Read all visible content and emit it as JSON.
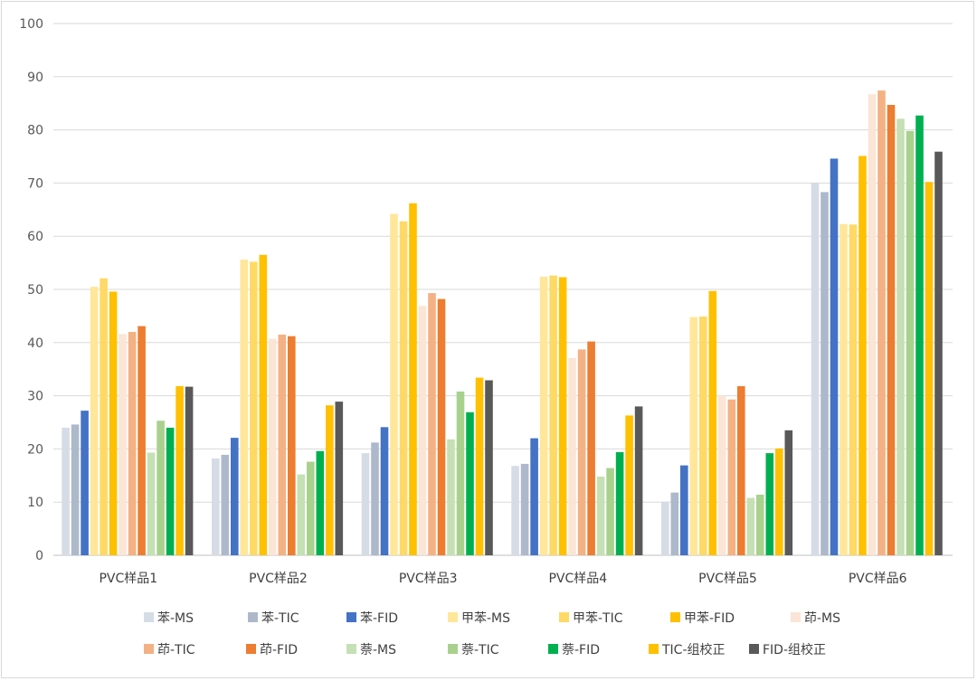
{
  "chart_data": {
    "type": "bar",
    "categories": [
      "PVC样品1",
      "PVC样品2",
      "PVC样品3",
      "PVC样品4",
      "PVC样品5",
      "PVC样品6"
    ],
    "ylim": [
      0,
      100
    ],
    "yticks": [
      0,
      10,
      20,
      30,
      40,
      50,
      60,
      70,
      80,
      90,
      100
    ],
    "grid": true,
    "legend_position": "bottom",
    "series": [
      {
        "name": "苯-MS",
        "color": "#d6dce5",
        "values": [
          24.0,
          18.2,
          19.2,
          16.8,
          10.1,
          70.0
        ]
      },
      {
        "name": "苯-TIC",
        "color": "#adb9ca",
        "values": [
          24.6,
          18.9,
          21.2,
          17.2,
          11.8,
          68.3
        ]
      },
      {
        "name": "苯-FID",
        "color": "#4472c4",
        "values": [
          27.2,
          22.1,
          24.1,
          22.0,
          16.9,
          74.6
        ]
      },
      {
        "name": "甲苯-MS",
        "color": "#ffe699",
        "values": [
          50.5,
          55.6,
          64.2,
          52.4,
          44.8,
          62.3
        ]
      },
      {
        "name": "甲苯-TIC",
        "color": "#ffd966",
        "values": [
          52.1,
          55.2,
          62.8,
          52.6,
          44.9,
          62.2
        ]
      },
      {
        "name": "甲苯-FID",
        "color": "#ffc000",
        "values": [
          49.6,
          56.5,
          66.2,
          52.3,
          49.7,
          75.1
        ]
      },
      {
        "name": "茚-MS",
        "color": "#fbe5d6",
        "values": [
          41.6,
          40.7,
          46.9,
          37.1,
          30.0,
          86.7
        ]
      },
      {
        "name": "茚-TIC",
        "color": "#f4b183",
        "values": [
          42.0,
          41.5,
          49.3,
          38.7,
          29.3,
          87.4
        ]
      },
      {
        "name": "茚-FID",
        "color": "#ed7d31",
        "values": [
          43.1,
          41.2,
          48.2,
          40.2,
          31.8,
          84.7
        ]
      },
      {
        "name": "萘-MS",
        "color": "#c5e0b4",
        "values": [
          19.3,
          15.2,
          21.8,
          14.8,
          10.8,
          82.1
        ]
      },
      {
        "name": "萘-TIC",
        "color": "#a9d18e",
        "values": [
          25.3,
          17.6,
          30.8,
          16.4,
          11.4,
          79.8
        ]
      },
      {
        "name": "萘-FID",
        "color": "#00b050",
        "values": [
          24.0,
          19.6,
          26.9,
          19.4,
          19.2,
          82.7
        ]
      },
      {
        "name": "TIC-组校正",
        "color": "#ffc000",
        "values": [
          31.8,
          28.2,
          33.4,
          26.3,
          20.1,
          70.2
        ]
      },
      {
        "name": "FID-组校正",
        "color": "#595959",
        "values": [
          31.7,
          28.9,
          32.9,
          28.0,
          23.5,
          75.9
        ]
      }
    ]
  }
}
